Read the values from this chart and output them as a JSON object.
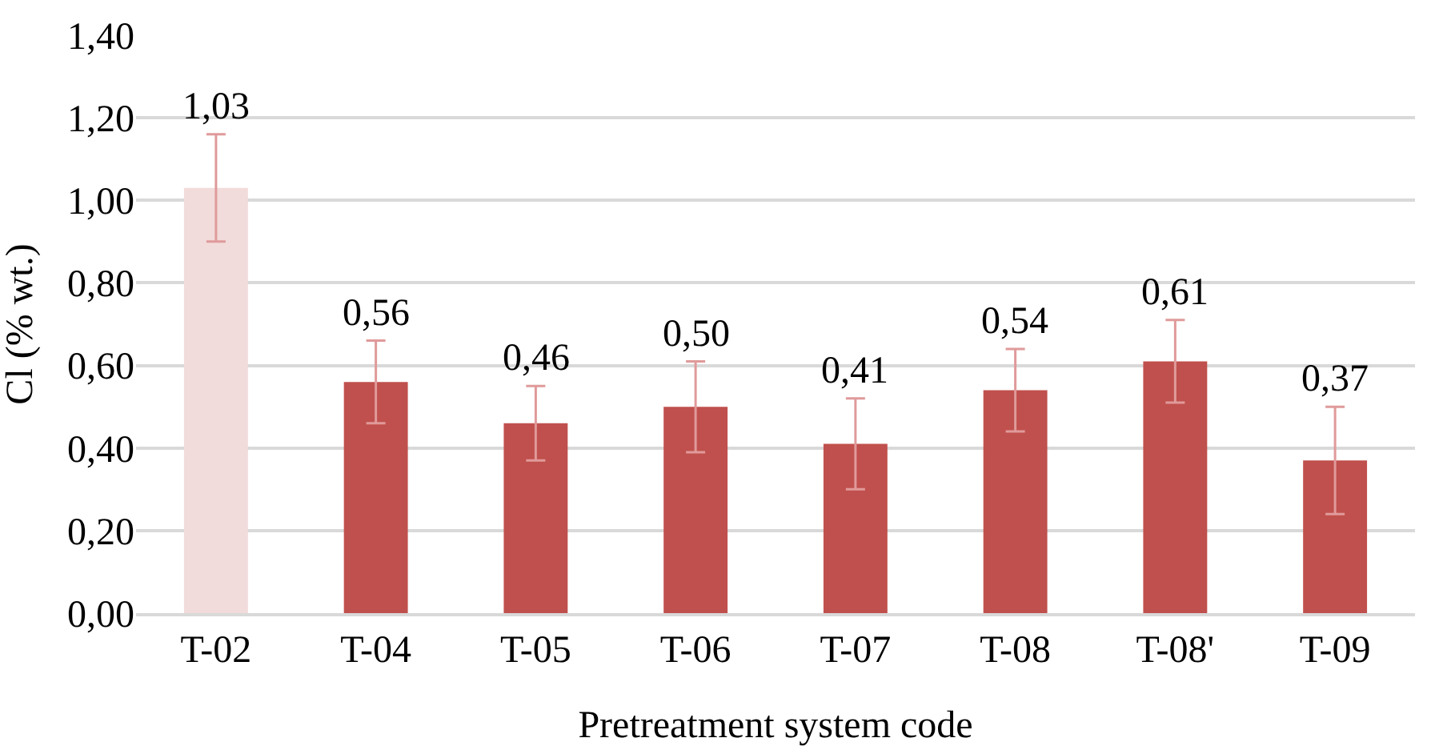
{
  "chart_data": {
    "type": "bar",
    "xlabel": "Pretreatment system code",
    "ylabel": "Cl (% wt.)",
    "categories": [
      "T-02",
      "T-04",
      "T-05",
      "T-06",
      "T-07",
      "T-08",
      "T-08'",
      "T-09"
    ],
    "values": [
      1.03,
      0.56,
      0.46,
      0.5,
      0.41,
      0.54,
      0.61,
      0.37
    ],
    "colors": [
      "#f2dbdb",
      "#c0504d",
      "#c0504d",
      "#c0504d",
      "#c0504d",
      "#c0504d",
      "#c0504d",
      "#c0504d"
    ],
    "errors": [
      0.13,
      0.1,
      0.09,
      0.11,
      0.11,
      0.1,
      0.1,
      0.13
    ],
    "value_labels": [
      "1,03",
      "0,56",
      "0,46",
      "0,50",
      "0,41",
      "0,54",
      "0,61",
      "0,37"
    ],
    "ylim": [
      0,
      1.4
    ],
    "yticks": [
      {
        "value": 0,
        "label": "0,00"
      },
      {
        "value": 0.2,
        "label": "0,20"
      },
      {
        "value": 0.4,
        "label": "0,40"
      },
      {
        "value": 0.6,
        "label": "0,60"
      },
      {
        "value": 0.8,
        "label": "0,80"
      },
      {
        "value": 1.0,
        "label": "1,00"
      },
      {
        "value": 1.2,
        "label": "1,20"
      },
      {
        "value": 1.4,
        "label": "1,40"
      }
    ],
    "grid": "y"
  }
}
